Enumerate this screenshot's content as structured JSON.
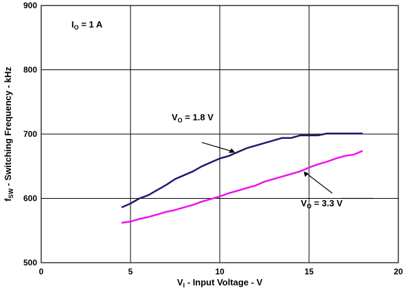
{
  "chart_data": {
    "type": "line",
    "title": "",
    "xlabel": {
      "main": "V",
      "sub": "I",
      "rest": " - Input Voltage - V"
    },
    "ylabel": {
      "main": "f",
      "sub": "SW",
      "rest": " - Switching Frequency - kHz"
    },
    "xlim": [
      0,
      20
    ],
    "ylim": [
      500,
      900
    ],
    "xticks": [
      0,
      5,
      10,
      15,
      20
    ],
    "yticks": [
      500,
      600,
      700,
      800,
      900
    ],
    "grid": true,
    "condition_label": {
      "main": "I",
      "sub": "O",
      "rest": " = 1 A"
    },
    "series": [
      {
        "label_main": "V",
        "label_sub": "O",
        "label_rest": " = 1.8 V",
        "color": "#1a1a6e",
        "x": [
          4.5,
          5.0,
          5.5,
          6.0,
          6.5,
          7.0,
          7.5,
          8.0,
          8.5,
          9.0,
          9.5,
          10.0,
          10.5,
          11.0,
          11.5,
          12.0,
          12.5,
          13.0,
          13.5,
          14.0,
          14.5,
          15.0,
          15.5,
          16.0,
          16.5,
          17.0,
          17.5,
          18.0
        ],
        "values": [
          586,
          592,
          600,
          605,
          613,
          621,
          630,
          636,
          642,
          650,
          656,
          662,
          666,
          672,
          678,
          682,
          686,
          690,
          694,
          694,
          698,
          698,
          698,
          701,
          701,
          701,
          701,
          701
        ]
      },
      {
        "label_main": "V",
        "label_sub": "O",
        "label_rest": " = 3.3 V",
        "color": "#ee11ee",
        "x": [
          4.5,
          5.0,
          5.5,
          6.0,
          6.5,
          7.0,
          7.5,
          8.0,
          8.5,
          9.0,
          9.5,
          10.0,
          10.5,
          11.0,
          11.5,
          12.0,
          12.5,
          13.0,
          13.5,
          14.0,
          14.5,
          15.0,
          15.5,
          16.0,
          16.5,
          17.0,
          17.5,
          18.0
        ],
        "values": [
          562,
          564,
          568,
          571,
          575,
          579,
          582,
          586,
          590,
          595,
          599,
          603,
          608,
          612,
          616,
          620,
          626,
          630,
          634,
          638,
          642,
          648,
          653,
          657,
          662,
          666,
          668,
          674
        ]
      }
    ]
  }
}
